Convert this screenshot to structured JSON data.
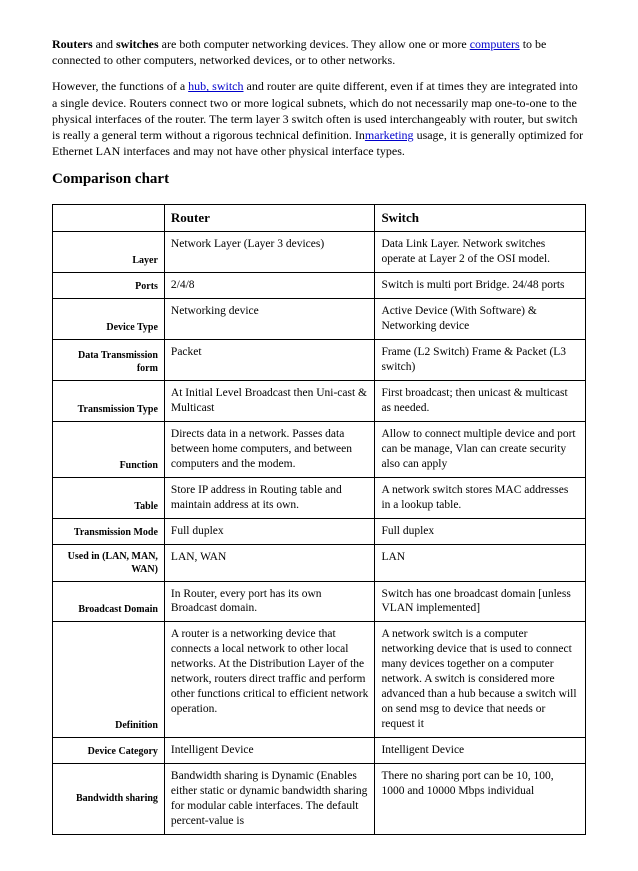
{
  "intro": {
    "p1_a": "Routers",
    "p1_b": " and ",
    "p1_c": "switches",
    "p1_d": " are both computer networking devices. They allow one or more ",
    "p1_link": "computers",
    "p1_e": " to be connected to other computers, networked devices, or to other networks.",
    "p2_a": "However, the functions of a ",
    "p2_link1": "hub, switch",
    "p2_b": " and router are quite different, even if at times they are integrated into a single device. Routers connect two or more logical subnets, which do not necessarily map one-to-one to the physical interfaces of the router. The term layer 3 switch often is used interchangeably with router, but switch is really a general term without a rigorous technical definition. In",
    "p2_link2": "marketing",
    "p2_c": " usage, it is generally optimized for Ethernet LAN interfaces and may not have other physical interface types."
  },
  "heading": "Comparison chart",
  "table": {
    "head": {
      "c0": "",
      "c1": "Router",
      "c2": "Switch"
    },
    "rows": [
      {
        "label": "Layer",
        "router": "Network Layer (Layer 3 devices)",
        "switch": "Data Link Layer. Network switches operate at Layer 2 of the OSI model."
      },
      {
        "label": "Ports",
        "router": "2/4/8",
        "switch": "Switch is multi port Bridge. 24/48 ports"
      },
      {
        "label": "Device Type",
        "router": "Networking device",
        "switch": "Active Device (With Software) & Networking device"
      },
      {
        "label": "Data Transmission form",
        "router": "Packet",
        "switch": "Frame (L2 Switch) Frame & Packet (L3 switch)"
      },
      {
        "label": "Transmission Type",
        "router": "At Initial Level Broadcast then Uni-cast & Multicast",
        "switch": "First broadcast; then unicast & multicast as needed."
      },
      {
        "label": "Function",
        "router": "Directs data in a network. Passes data between home computers, and between computers and the modem.",
        "switch": "Allow to connect multiple device and port can be manage, Vlan can create security also can apply"
      },
      {
        "label": "Table",
        "router": "Store IP address in Routing table and maintain address at its own.",
        "switch": "A network switch stores MAC addresses in a lookup table."
      },
      {
        "label": "Transmission Mode",
        "router": "Full duplex",
        "switch": "Full duplex"
      },
      {
        "label": "Used in (LAN, MAN, WAN)",
        "router": "LAN, WAN",
        "switch": "LAN"
      },
      {
        "label": "Broadcast Domain",
        "router": "In Router, every port has its own Broadcast domain.",
        "switch": "Switch has one broadcast domain [unless VLAN implemented]"
      },
      {
        "label": "Definition",
        "router": "A router is a networking device that connects a local network to other local networks. At the Distribution Layer of the network, routers direct traffic and perform other functions critical to efficient network operation.",
        "switch": "A network switch is a computer networking device that is used to connect many devices together on a computer network. A switch is considered more advanced than a hub because a switch will on send msg to device that needs or request it"
      },
      {
        "label": "Device Category",
        "router": "Intelligent Device",
        "switch": "Intelligent Device"
      },
      {
        "label": "Bandwidth sharing",
        "router": "Bandwidth sharing is Dynamic (Enables either static or dynamic bandwidth sharing for modular cable interfaces. The default percent-value is",
        "switch": "There no sharing port can be 10, 100, 1000 and 10000 Mbps individual"
      }
    ]
  }
}
